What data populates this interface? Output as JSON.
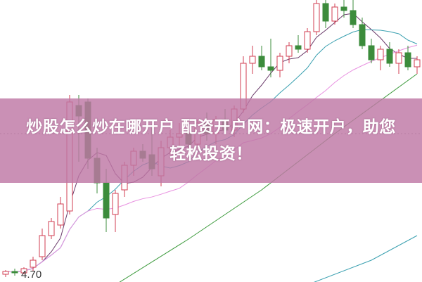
{
  "overlay": {
    "title_line1": "炒股怎么炒在哪开户 配资开户网：极速开户，助您",
    "title_line2": "轻松投资！",
    "background_color": "#be78a5"
  },
  "chart_data": {
    "type": "candlestick",
    "price_label": "4.70",
    "ylim": [
      4.6,
      8.6
    ],
    "up_color": "#d23c50",
    "down_color": "#3c8c3c",
    "grid": false,
    "reference_line_price": 6.7,
    "candles": [
      [
        4.7,
        4.76,
        4.66,
        4.74
      ],
      [
        4.74,
        4.78,
        4.68,
        4.72
      ],
      [
        4.72,
        4.8,
        4.7,
        4.78
      ],
      [
        4.8,
        4.95,
        4.75,
        4.9
      ],
      [
        4.95,
        5.35,
        4.9,
        5.25
      ],
      [
        5.25,
        5.5,
        5.2,
        5.45
      ],
      [
        5.4,
        5.8,
        5.35,
        5.7
      ],
      [
        5.6,
        7.25,
        5.55,
        7.15
      ],
      [
        7.1,
        7.25,
        6.3,
        6.95
      ],
      [
        7.15,
        7.2,
        6.2,
        6.35
      ],
      [
        6.35,
        6.5,
        5.85,
        6.0
      ],
      [
        6.0,
        6.2,
        5.3,
        5.5
      ],
      [
        5.55,
        5.9,
        5.3,
        5.85
      ],
      [
        5.9,
        6.3,
        5.8,
        6.25
      ],
      [
        6.25,
        6.5,
        6.1,
        6.45
      ],
      [
        6.45,
        6.55,
        6.3,
        6.35
      ],
      [
        6.4,
        6.8,
        6.1,
        6.2
      ],
      [
        6.1,
        6.6,
        5.95,
        6.5
      ],
      [
        6.5,
        6.75,
        6.4,
        6.65
      ],
      [
        6.65,
        6.85,
        6.5,
        6.7
      ],
      [
        6.7,
        6.75,
        6.45,
        6.55
      ],
      [
        6.55,
        6.9,
        6.5,
        6.85
      ],
      [
        6.85,
        7.0,
        6.6,
        6.7
      ],
      [
        6.7,
        6.95,
        6.55,
        6.9
      ],
      [
        6.9,
        7.05,
        6.7,
        6.75
      ],
      [
        6.75,
        7.1,
        6.65,
        7.05
      ],
      [
        7.05,
        7.8,
        7.0,
        7.7
      ],
      [
        7.7,
        7.95,
        7.55,
        7.8
      ],
      [
        7.8,
        7.95,
        7.6,
        7.65
      ],
      [
        7.65,
        8.05,
        7.5,
        7.6
      ],
      [
        7.6,
        7.85,
        7.5,
        7.8
      ],
      [
        7.8,
        8.0,
        7.7,
        7.95
      ],
      [
        7.95,
        8.1,
        7.85,
        7.9
      ],
      [
        7.9,
        8.2,
        7.85,
        8.15
      ],
      [
        8.15,
        8.7,
        8.1,
        8.55
      ],
      [
        8.55,
        8.65,
        8.2,
        8.3
      ],
      [
        8.3,
        8.55,
        8.25,
        8.5
      ],
      [
        8.5,
        8.65,
        8.35,
        8.45
      ],
      [
        8.45,
        8.6,
        8.2,
        8.25
      ],
      [
        8.25,
        8.35,
        7.9,
        7.95
      ],
      [
        7.95,
        8.05,
        7.7,
        7.75
      ],
      [
        7.75,
        7.95,
        7.6,
        7.9
      ],
      [
        7.9,
        8.0,
        7.65,
        7.7
      ],
      [
        7.7,
        7.9,
        7.55,
        7.85
      ],
      [
        7.85,
        7.95,
        7.6,
        7.65
      ],
      [
        7.65,
        7.8,
        7.55,
        7.75
      ]
    ],
    "moving_averages": [
      {
        "period": 5,
        "color": "#6a3a6a"
      },
      {
        "period": 10,
        "color": "#3aa0b0"
      },
      {
        "period": 20,
        "color": "#e890e0"
      }
    ],
    "trend_lines": [
      {
        "color": "#3c9a3c",
        "points": [
          [
            12,
            4.55
          ],
          [
            20,
            5.2
          ],
          [
            28,
            5.9
          ],
          [
            36,
            6.7
          ],
          [
            45,
            7.55
          ]
        ]
      },
      {
        "color": "#3aa0b0",
        "points": [
          [
            33,
            4.55
          ],
          [
            40,
            4.9
          ],
          [
            45,
            5.25
          ]
        ]
      }
    ]
  }
}
